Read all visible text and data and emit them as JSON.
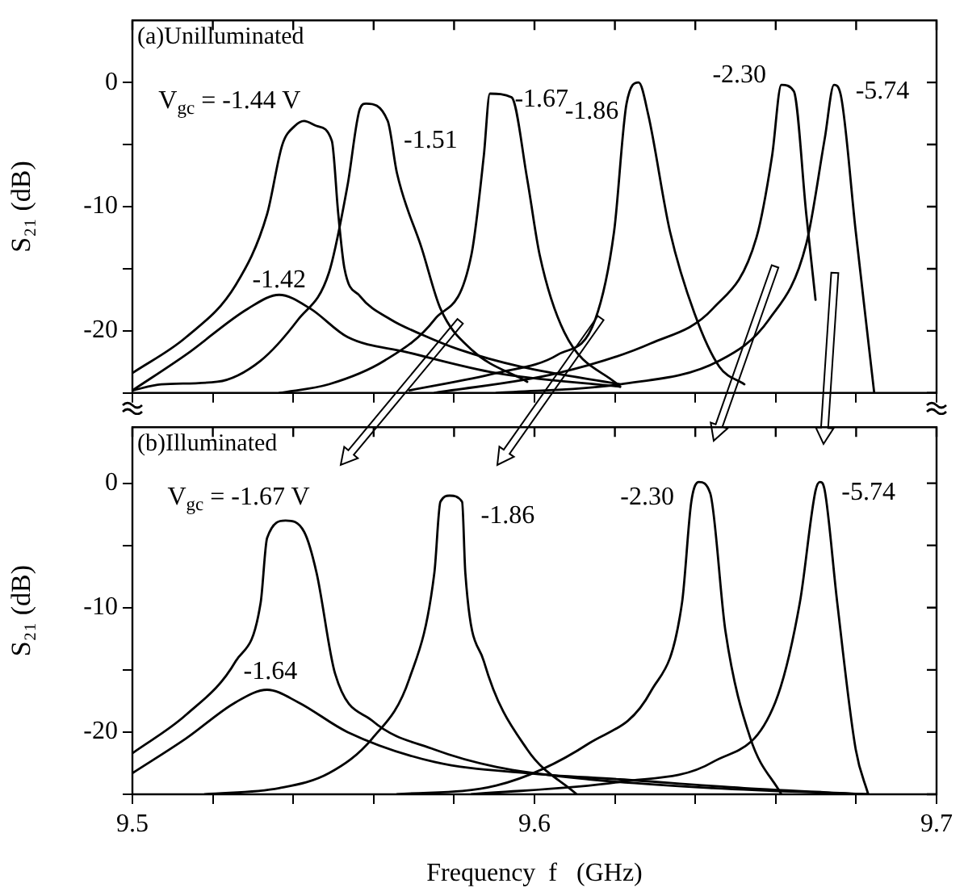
{
  "chart_data": [
    {
      "type": "line",
      "ylabel": "S₂₁ (dB)",
      "xlim": [
        9.5,
        9.7
      ],
      "xticks": [
        9.5,
        {
          "value": 9.52,
          "label": null
        },
        {
          "value": 9.54,
          "label": null
        },
        {
          "value": 9.56,
          "label": null
        },
        {
          "value": 9.58,
          "label": null
        },
        9.6,
        {
          "value": 9.62,
          "label": null
        },
        {
          "value": 9.64,
          "label": null
        },
        {
          "value": 9.66,
          "label": null
        },
        {
          "value": 9.68,
          "label": null
        },
        9.7
      ],
      "ylim": [
        -25,
        5
      ],
      "yticks": [
        {
          "value": -25,
          "label": null
        },
        -20,
        {
          "value": -15,
          "label": null
        },
        -10,
        {
          "value": -5,
          "label": null
        },
        0
      ],
      "tick_labels": "y",
      "grid": false,
      "marker": "none",
      "line_style": "solid",
      "series": [
        {
          "name": "V$_{gc}$ = -1.44 V",
          "color": "#000000",
          "x": [
            9.5,
            9.5134,
            9.5257,
            9.5335,
            9.5373,
            9.5404,
            9.5427,
            9.5458,
            9.5496,
            9.5512,
            9.5527,
            9.5566,
            9.5643,
            9.572,
            9.5812,
            9.5967,
            9.6213
          ],
          "values": [
            -23.4,
            -20.5,
            -16.3,
            -10.6,
            -5,
            -3.5,
            -3.1,
            -3.5,
            -4.7,
            -10.6,
            -14.9,
            -17.2,
            -19.1,
            -20.3,
            -21.5,
            -22.9,
            -24.3
          ]
        },
        {
          "name": "-1.42",
          "color": "#000000",
          "x": [
            9.5,
            9.5134,
            9.5288,
            9.5365,
            9.5442,
            9.5535,
            9.5681,
            9.5905,
            9.6213
          ],
          "values": [
            -24.8,
            -21.9,
            -18.2,
            -17.1,
            -18.2,
            -20.5,
            -21.7,
            -23.4,
            -24.5
          ]
        },
        {
          "name": "-1.51",
          "color": "#000000",
          "x": [
            9.5,
            9.5072,
            9.5211,
            9.5319,
            9.5412,
            9.5489,
            9.5535,
            9.5566,
            9.5581,
            9.5635,
            9.5658,
            9.572,
            9.5766,
            9.5843,
            9.5982
          ],
          "values": [
            -24.8,
            -24.3,
            -24.1,
            -22.4,
            -19.1,
            -15.3,
            -8.3,
            -2.1,
            -1.7,
            -3.1,
            -7.3,
            -13.4,
            -18.2,
            -21.5,
            -24.1
          ]
        },
        {
          "name": "-1.67",
          "color": "#000000",
          "x": [
            9.5365,
            9.5489,
            9.5627,
            9.5751,
            9.5843,
            9.5874,
            9.5889,
            9.5943,
            9.5982,
            9.6013,
            9.6074,
            9.6213
          ],
          "values": [
            -25,
            -24.3,
            -22.4,
            -19.1,
            -13.9,
            -5.9,
            -0.9,
            -1.2,
            -7.8,
            -13.9,
            -20.1,
            -24.5
          ]
        },
        {
          "name": "-1.86",
          "color": "#000000",
          "x": [
            9.5689,
            9.5905,
            9.6059,
            9.6151,
            9.6198,
            9.6229,
            9.6259,
            9.6283,
            9.6337,
            9.6398,
            9.646,
            9.6522
          ],
          "values": [
            -24.8,
            -23.4,
            -21.9,
            -19.1,
            -12,
            -1.7,
            0,
            -2.6,
            -12,
            -18.6,
            -22.9,
            -24.3
          ]
        },
        {
          "name": "-2.30",
          "color": "#000000",
          "x": [
            9.5751,
            9.6059,
            9.629,
            9.6444,
            9.6552,
            9.6591,
            9.6614,
            9.6645,
            9.6676,
            9.6699
          ],
          "values": [
            -25,
            -23.4,
            -21,
            -18.2,
            -12.5,
            -5.9,
            -0.2,
            -0.7,
            -10.6,
            -17.5
          ]
        },
        {
          "name": "-5.74",
          "color": "#000000",
          "x": [
            9.5905,
            9.6213,
            9.646,
            9.6583,
            9.6676,
            9.6722,
            9.6745,
            9.6761,
            9.6799,
            9.6845
          ],
          "values": [
            -25,
            -24.3,
            -22.4,
            -19.1,
            -13,
            -4.5,
            -0.2,
            -0.9,
            -12,
            -25
          ]
        }
      ],
      "annotations": [
        "(a)Unilluminated"
      ]
    },
    {
      "type": "line",
      "xlabel": "Frequency  f   (GHz)",
      "ylabel": "S₂₁ (dB)",
      "xlim": [
        9.5,
        9.7
      ],
      "xticks": [
        9.5,
        {
          "value": 9.52,
          "label": null
        },
        {
          "value": 9.54,
          "label": null
        },
        {
          "value": 9.56,
          "label": null
        },
        {
          "value": 9.58,
          "label": null
        },
        9.6,
        {
          "value": 9.62,
          "label": null
        },
        {
          "value": 9.64,
          "label": null
        },
        {
          "value": 9.66,
          "label": null
        },
        {
          "value": 9.68,
          "label": null
        },
        9.7
      ],
      "ylim": [
        -25,
        4.5
      ],
      "yticks": [
        {
          "value": -25,
          "label": null
        },
        -20,
        {
          "value": -15,
          "label": null
        },
        -10,
        {
          "value": -5,
          "label": null
        },
        0
      ],
      "grid": false,
      "marker": "none",
      "line_style": "solid",
      "series": [
        {
          "name": "V$_{gc}$ = -1.67 V",
          "color": "#000000",
          "x": [
            9.5,
            9.5134,
            9.5257,
            9.5319,
            9.5335,
            9.5381,
            9.5427,
            9.5458,
            9.5504,
            9.5597,
            9.5751,
            9.5905,
            9.6136,
            9.6444,
            9.683
          ],
          "values": [
            -21.7,
            -18.6,
            -14.3,
            -9.6,
            -4.4,
            -3,
            -3.9,
            -7.2,
            -15.3,
            -19.1,
            -21.4,
            -22.8,
            -23.8,
            -24.5,
            -25
          ]
        },
        {
          "name": "-1.64",
          "color": "#000000",
          "x": [
            9.5,
            9.5134,
            9.5257,
            9.5335,
            9.5412,
            9.5535,
            9.5751,
            9.5982,
            9.6213,
            9.6522,
            9.683
          ],
          "values": [
            -23.3,
            -20.5,
            -17.6,
            -16.6,
            -17.6,
            -20,
            -22.4,
            -23.3,
            -23.8,
            -24.5,
            -25
          ]
        },
        {
          "name": "-1.86",
          "color": "#000000",
          "x": [
            9.518,
            9.5365,
            9.5489,
            9.5597,
            9.5689,
            9.5751,
            9.5766,
            9.5789,
            9.582,
            9.5828,
            9.5874,
            9.5982,
            9.6105
          ],
          "values": [
            -25,
            -24.5,
            -23.3,
            -20.5,
            -15.7,
            -7.2,
            -1.5,
            -1,
            -1.5,
            -7.2,
            -14.3,
            -21.4,
            -25
          ]
        },
        {
          "name": "-2.30",
          "color": "#000000",
          "x": [
            9.5658,
            9.5905,
            9.6136,
            9.629,
            9.6367,
            9.639,
            9.6409,
            9.6437,
            9.6475,
            9.6537,
            9.6614
          ],
          "values": [
            -25,
            -24.3,
            -20.9,
            -16.7,
            -9.6,
            -1.5,
            0.1,
            -0.8,
            -11.9,
            -20.5,
            -25
          ]
        },
        {
          "name": "-5.74",
          "color": "#000000",
          "x": [
            9.5843,
            9.6213,
            9.6444,
            9.6599,
            9.666,
            9.6699,
            9.671,
            9.6722,
            9.6753,
            9.6799,
            9.683
          ],
          "values": [
            -25,
            -24,
            -22.4,
            -17.6,
            -9.6,
            -0.6,
            0.1,
            -0.6,
            -9.6,
            -21.4,
            -25
          ]
        }
      ],
      "annotations": [
        "(b)Illuminated"
      ]
    }
  ]
}
